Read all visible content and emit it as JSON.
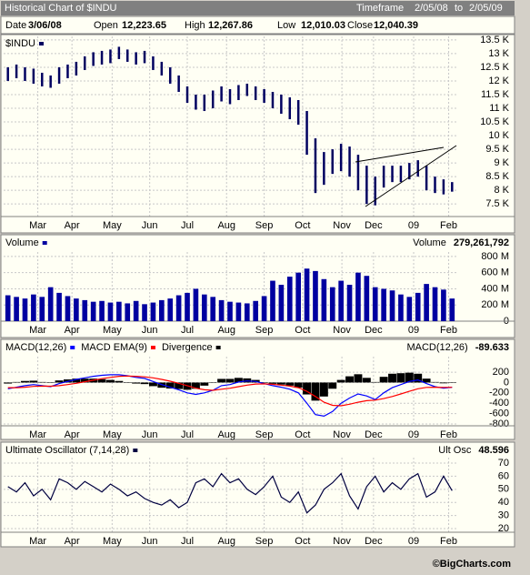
{
  "header": {
    "title": "Historical Chart of $INDU",
    "timeframe_label": "Timeframe",
    "from": "2/05/08",
    "to_label": "to",
    "to": "2/05/09"
  },
  "quote": {
    "date_label": "Date",
    "date": "3/06/08",
    "open_label": "Open",
    "open": "12,223.65",
    "high_label": "High",
    "high": "12,267.86",
    "low_label": "Low",
    "low": "12,010.03",
    "close_label": "Close",
    "close": "12,040.39"
  },
  "footer": {
    "text": "©BigCharts.com"
  },
  "chart_data": [
    {
      "type": "range",
      "series": [
        {
          "name": "$INDU",
          "color": "#000060",
          "high": [
            12500,
            12600,
            12500,
            12450,
            12300,
            12200,
            12500,
            12600,
            12700,
            12900,
            13050,
            13100,
            13150,
            13250,
            13150,
            13050,
            13100,
            12900,
            12700,
            12500,
            12200,
            11800,
            11500,
            11500,
            11650,
            11800,
            11700,
            11850,
            11900,
            11800,
            11700,
            11600,
            11500,
            11400,
            11300,
            10900,
            9900,
            9400,
            9500,
            9700,
            9600,
            9300,
            8900,
            8500,
            8900,
            8900,
            8900,
            9000,
            9100,
            8900,
            8500,
            8400,
            8300
          ],
          "low": [
            12000,
            12100,
            12000,
            11900,
            11800,
            11750,
            11900,
            12100,
            12200,
            12400,
            12550,
            12600,
            12650,
            12800,
            12700,
            12600,
            12650,
            12400,
            12200,
            11900,
            11600,
            11200,
            10950,
            10900,
            11000,
            11250,
            11150,
            11300,
            11450,
            11300,
            11200,
            11000,
            10800,
            10600,
            10400,
            9300,
            7900,
            8200,
            8600,
            8700,
            8500,
            8000,
            7500,
            7450,
            8100,
            8300,
            8300,
            8400,
            8500,
            8000,
            7900,
            7850,
            7950
          ]
        }
      ],
      "x": [
        0,
        1,
        2,
        3,
        4,
        5,
        6,
        7,
        8,
        9,
        10,
        11,
        12,
        13,
        14,
        15,
        16,
        17,
        18,
        19,
        20,
        21,
        22,
        23,
        24,
        25,
        26,
        27,
        28,
        29,
        30,
        31,
        32,
        33,
        34,
        35,
        36,
        37,
        38,
        39,
        40,
        41,
        42,
        43,
        44,
        45,
        46,
        47,
        48,
        49,
        50,
        51,
        52
      ],
      "xlim": [
        -0.5,
        52.5
      ],
      "xticks": [
        {
          "value": 3.5,
          "label": "Mar"
        },
        {
          "value": 7.5,
          "label": "Apr"
        },
        {
          "value": 12.2,
          "label": "May"
        },
        {
          "value": 16.6,
          "label": "Jun"
        },
        {
          "value": 21,
          "label": "Jul"
        },
        {
          "value": 25.6,
          "label": "Aug"
        },
        {
          "value": 30,
          "label": "Sep"
        },
        {
          "value": 34.5,
          "label": "Oct"
        },
        {
          "value": 39.1,
          "label": "Nov"
        },
        {
          "value": 42.8,
          "label": "Dec"
        },
        {
          "value": 47.5,
          "label": "09"
        },
        {
          "value": 51.6,
          "label": "Feb"
        }
      ],
      "ylim": [
        7040,
        13630
      ],
      "yticks": [
        {
          "value": 7500,
          "label": "7.5 K"
        },
        {
          "value": 8000,
          "label": "8 K"
        },
        {
          "value": 8500,
          "label": "8.5 K"
        },
        {
          "value": 9000,
          "label": "9 K"
        },
        {
          "value": 9500,
          "label": "9.5 K"
        },
        {
          "value": 10000,
          "label": "10 K"
        },
        {
          "value": 10500,
          "label": "10.5 K"
        },
        {
          "value": 11000,
          "label": "11 K"
        },
        {
          "value": 11500,
          "label": "11.5 K"
        },
        {
          "value": 12000,
          "label": "12 K"
        },
        {
          "value": 12500,
          "label": "12.5 K"
        },
        {
          "value": 13000,
          "label": "13 K"
        },
        {
          "value": 13500,
          "label": "13.5 K"
        }
      ],
      "grid": true
    },
    {
      "type": "bar",
      "series": [
        {
          "name": "Volume",
          "color": "#0000a0",
          "values": [
            320000000,
            300000000,
            280000000,
            330000000,
            300000000,
            420000000,
            350000000,
            310000000,
            280000000,
            260000000,
            240000000,
            250000000,
            230000000,
            240000000,
            220000000,
            250000000,
            210000000,
            230000000,
            260000000,
            280000000,
            320000000,
            350000000,
            400000000,
            330000000,
            300000000,
            260000000,
            240000000,
            230000000,
            220000000,
            250000000,
            310000000,
            500000000,
            450000000,
            550000000,
            600000000,
            650000000,
            620000000,
            520000000,
            420000000,
            500000000,
            450000000,
            600000000,
            560000000,
            420000000,
            400000000,
            380000000,
            330000000,
            300000000,
            350000000,
            460000000,
            420000000,
            390000000,
            280000000
          ]
        }
      ],
      "readout": {
        "label": "Volume",
        "value": 279261792,
        "value_label": "279,261,792"
      },
      "x": [
        0,
        1,
        2,
        3,
        4,
        5,
        6,
        7,
        8,
        9,
        10,
        11,
        12,
        13,
        14,
        15,
        16,
        17,
        18,
        19,
        20,
        21,
        22,
        23,
        24,
        25,
        26,
        27,
        28,
        29,
        30,
        31,
        32,
        33,
        34,
        35,
        36,
        37,
        38,
        39,
        40,
        41,
        42,
        43,
        44,
        45,
        46,
        47,
        48,
        49,
        50,
        51,
        52
      ],
      "xlim": [
        -0.5,
        52.5
      ],
      "xticks": [
        {
          "value": 3.5,
          "label": "Mar"
        },
        {
          "value": 7.5,
          "label": "Apr"
        },
        {
          "value": 12.2,
          "label": "May"
        },
        {
          "value": 16.6,
          "label": "Jun"
        },
        {
          "value": 21,
          "label": "Jul"
        },
        {
          "value": 25.6,
          "label": "Aug"
        },
        {
          "value": 30,
          "label": "Sep"
        },
        {
          "value": 34.5,
          "label": "Oct"
        },
        {
          "value": 39.1,
          "label": "Nov"
        },
        {
          "value": 42.8,
          "label": "Dec"
        },
        {
          "value": 47.5,
          "label": "09"
        },
        {
          "value": 51.6,
          "label": "Feb"
        }
      ],
      "ylim": [
        0,
        855000000
      ],
      "yticks": [
        0,
        {
          "value": 200000000,
          "label": "200 M"
        },
        {
          "value": 400000000,
          "label": "400 M"
        },
        {
          "value": 600000000,
          "label": "600 M"
        },
        {
          "value": 800000000,
          "label": "800 M"
        }
      ],
      "grid": true
    },
    {
      "type": "macd",
      "series": [
        {
          "name": "MACD(12,26)",
          "color": "#0000ff",
          "kind": "line",
          "values": [
            -120,
            -90,
            -60,
            -40,
            -60,
            -80,
            -20,
            20,
            60,
            90,
            120,
            140,
            150,
            150,
            130,
            100,
            80,
            20,
            -40,
            -90,
            -140,
            -200,
            -230,
            -200,
            -150,
            -60,
            -40,
            10,
            30,
            20,
            -20,
            -60,
            -90,
            -130,
            -200,
            -400,
            -620,
            -650,
            -560,
            -400,
            -300,
            -220,
            -260,
            -330,
            -200,
            -100,
            -40,
            20,
            50,
            -20,
            -80,
            -110,
            -90
          ]
        },
        {
          "name": "MACD EMA(9)",
          "color": "#ff0000",
          "kind": "line",
          "values": [
            -100,
            -100,
            -90,
            -75,
            -70,
            -72,
            -60,
            -40,
            -15,
            15,
            45,
            75,
            100,
            120,
            125,
            120,
            110,
            90,
            60,
            25,
            -15,
            -60,
            -110,
            -140,
            -150,
            -130,
            -110,
            -80,
            -50,
            -30,
            -25,
            -35,
            -50,
            -70,
            -100,
            -170,
            -270,
            -380,
            -440,
            -450,
            -420,
            -380,
            -350,
            -340,
            -310,
            -270,
            -220,
            -170,
            -120,
            -95,
            -90,
            -95,
            -93
          ]
        },
        {
          "name": "Divergence",
          "color": "#000000",
          "kind": "bar",
          "values": [
            -20,
            10,
            30,
            35,
            10,
            -8,
            40,
            60,
            75,
            75,
            75,
            65,
            50,
            30,
            5,
            -20,
            -30,
            -70,
            -100,
            -115,
            -125,
            -140,
            -120,
            -60,
            0,
            70,
            70,
            90,
            80,
            50,
            5,
            -25,
            -40,
            -60,
            -100,
            -230,
            -350,
            -270,
            -120,
            50,
            120,
            160,
            90,
            10,
            110,
            170,
            180,
            190,
            170,
            75,
            10,
            -15,
            3
          ]
        }
      ],
      "readout": {
        "label": "MACD(12,26)",
        "value": -89.633
      },
      "x": [
        0,
        1,
        2,
        3,
        4,
        5,
        6,
        7,
        8,
        9,
        10,
        11,
        12,
        13,
        14,
        15,
        16,
        17,
        18,
        19,
        20,
        21,
        22,
        23,
        24,
        25,
        26,
        27,
        28,
        29,
        30,
        31,
        32,
        33,
        34,
        35,
        36,
        37,
        38,
        39,
        40,
        41,
        42,
        43,
        44,
        45,
        46,
        47,
        48,
        49,
        50,
        51,
        52
      ],
      "xlim": [
        -0.5,
        52.5
      ],
      "xticks": [
        {
          "value": 3.5,
          "label": "Mar"
        },
        {
          "value": 7.5,
          "label": "Apr"
        },
        {
          "value": 12.2,
          "label": "May"
        },
        {
          "value": 16.6,
          "label": "Jun"
        },
        {
          "value": 21,
          "label": "Jul"
        },
        {
          "value": 25.6,
          "label": "Aug"
        },
        {
          "value": 30,
          "label": "Sep"
        },
        {
          "value": 34.5,
          "label": "Oct"
        },
        {
          "value": 39.1,
          "label": "Nov"
        },
        {
          "value": 42.8,
          "label": "Dec"
        },
        {
          "value": 47.5,
          "label": "09"
        },
        {
          "value": 51.6,
          "label": "Feb"
        }
      ],
      "ylim": [
        -836,
        500
      ],
      "yticks": [
        -800,
        -600,
        -400,
        -200,
        0,
        200
      ],
      "grid": true
    },
    {
      "type": "line",
      "series": [
        {
          "name": "Ultimate Oscillator (7,14,28)",
          "color": "#000040",
          "values": [
            52,
            48,
            55,
            45,
            50,
            42,
            58,
            55,
            50,
            56,
            52,
            48,
            54,
            50,
            45,
            48,
            43,
            40,
            38,
            42,
            36,
            40,
            55,
            58,
            52,
            62,
            55,
            58,
            50,
            46,
            52,
            60,
            44,
            40,
            48,
            32,
            38,
            50,
            55,
            62,
            45,
            35,
            52,
            60,
            48,
            55,
            50,
            58,
            62,
            44,
            48,
            60,
            49
          ]
        }
      ],
      "readout": {
        "label": "Ult Osc",
        "value": 48.596
      },
      "x": [
        0,
        1,
        2,
        3,
        4,
        5,
        6,
        7,
        8,
        9,
        10,
        11,
        12,
        13,
        14,
        15,
        16,
        17,
        18,
        19,
        20,
        21,
        22,
        23,
        24,
        25,
        26,
        27,
        28,
        29,
        30,
        31,
        32,
        33,
        34,
        35,
        36,
        37,
        38,
        39,
        40,
        41,
        42,
        43,
        44,
        45,
        46,
        47,
        48,
        49,
        50,
        51,
        52
      ],
      "xlim": [
        -0.5,
        52.5
      ],
      "xticks": [
        {
          "value": 3.5,
          "label": "Mar"
        },
        {
          "value": 7.5,
          "label": "Apr"
        },
        {
          "value": 12.2,
          "label": "May"
        },
        {
          "value": 16.6,
          "label": "Jun"
        },
        {
          "value": 21,
          "label": "Jul"
        },
        {
          "value": 25.6,
          "label": "Aug"
        },
        {
          "value": 30,
          "label": "Sep"
        },
        {
          "value": 34.5,
          "label": "Oct"
        },
        {
          "value": 39.1,
          "label": "Nov"
        },
        {
          "value": 42.8,
          "label": "Dec"
        },
        {
          "value": 47.5,
          "label": "09"
        },
        {
          "value": 51.6,
          "label": "Feb"
        }
      ],
      "ylim": [
        17.2,
        74.2
      ],
      "yticks": [
        20,
        30,
        40,
        50,
        60,
        70
      ],
      "grid": true
    }
  ]
}
